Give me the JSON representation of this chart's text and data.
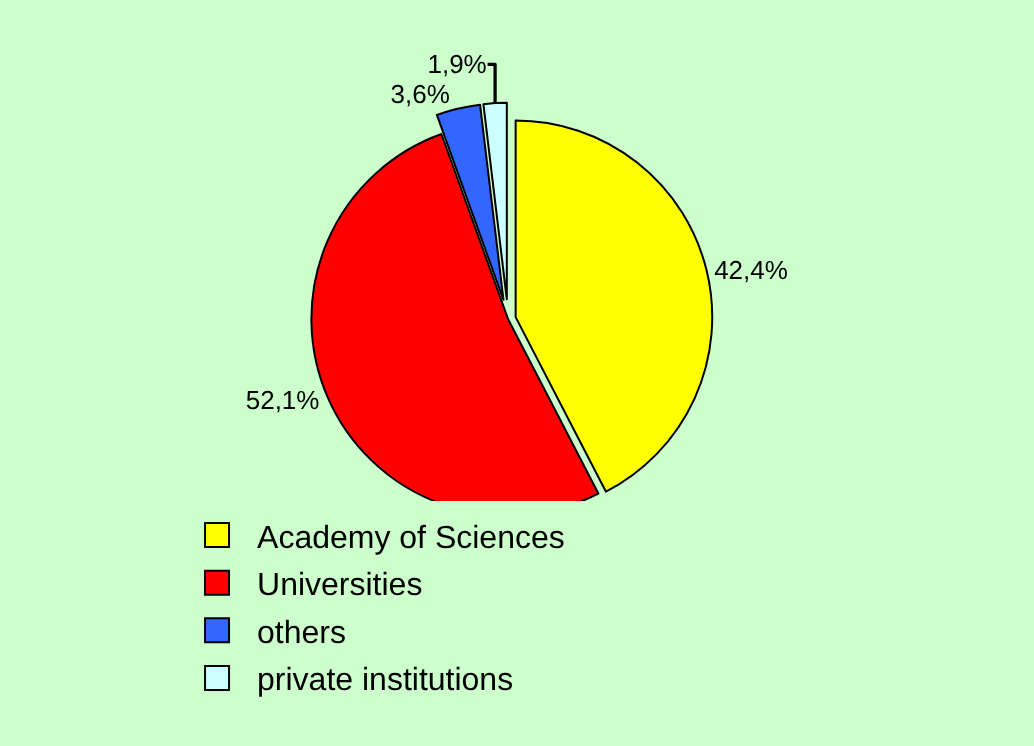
{
  "chart_data": {
    "type": "pie",
    "categories": [
      "Academy of Sciences",
      "Universities",
      "others",
      "private institutions"
    ],
    "values": [
      42.4,
      52.1,
      3.6,
      1.9
    ],
    "colors": [
      "#ffff00",
      "#ff0000",
      "#3366ff",
      "#ccffff"
    ],
    "value_labels": [
      "42,4%",
      "52,1%",
      "3,6%",
      "1,9%"
    ],
    "legend": "bottom"
  }
}
